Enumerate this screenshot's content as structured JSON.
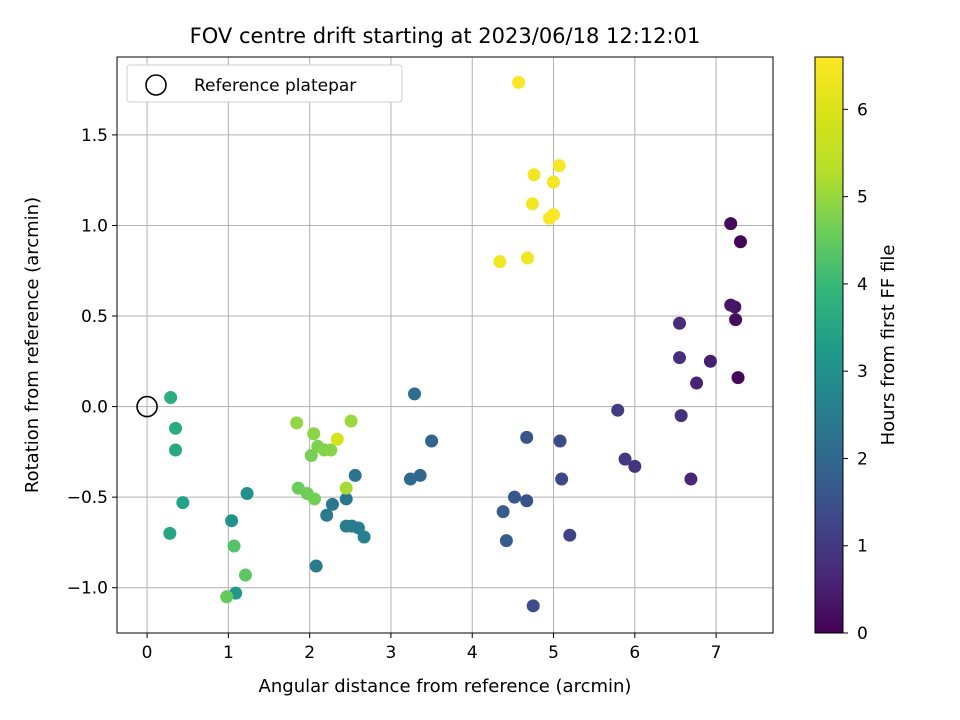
{
  "chart_data": {
    "type": "scatter",
    "title": "FOV centre drift starting at 2023/06/18 12:12:01",
    "xlabel": "Angular distance from reference (arcmin)",
    "ylabel": "Rotation from reference (arcmin)",
    "xlim": [
      -0.37,
      7.7
    ],
    "ylim": [
      -1.25,
      1.93
    ],
    "xticks": [
      0,
      1,
      2,
      3,
      4,
      5,
      6,
      7
    ],
    "xtick_labels": [
      "0",
      "1",
      "2",
      "3",
      "4",
      "5",
      "6",
      "7"
    ],
    "yticks": [
      -1.0,
      -0.5,
      0.0,
      0.5,
      1.0,
      1.5
    ],
    "ytick_labels": [
      "−1.0",
      "−0.5",
      "0.0",
      "0.5",
      "1.0",
      "1.5"
    ],
    "grid": true,
    "legend": {
      "position": "upper-left",
      "entries": [
        "Reference platepar"
      ]
    },
    "reference_point": {
      "x": 0,
      "y": 0,
      "label": "Reference platepar"
    },
    "colorbar": {
      "label": "Hours from first FF file",
      "colormap": "viridis",
      "range": [
        0,
        6.6
      ],
      "ticks": [
        0,
        1,
        2,
        3,
        4,
        5,
        6
      ],
      "tick_labels": [
        "0",
        "1",
        "2",
        "3",
        "4",
        "5",
        "6"
      ]
    },
    "points": [
      {
        "x": 7.3,
        "y": 0.91,
        "hours": 0.05
      },
      {
        "x": 7.18,
        "y": 1.01,
        "hours": 0.15
      },
      {
        "x": 7.27,
        "y": 0.16,
        "hours": 0.1
      },
      {
        "x": 7.24,
        "y": 0.48,
        "hours": 0.2
      },
      {
        "x": 7.23,
        "y": 0.55,
        "hours": 0.3
      },
      {
        "x": 7.18,
        "y": 0.56,
        "hours": 0.35
      },
      {
        "x": 6.93,
        "y": 0.25,
        "hours": 0.5
      },
      {
        "x": 6.76,
        "y": 0.13,
        "hours": 0.6
      },
      {
        "x": 6.69,
        "y": -0.4,
        "hours": 0.65
      },
      {
        "x": 6.55,
        "y": 0.46,
        "hours": 0.75
      },
      {
        "x": 6.55,
        "y": 0.27,
        "hours": 0.8
      },
      {
        "x": 6.57,
        "y": -0.05,
        "hours": 0.85
      },
      {
        "x": 6.0,
        "y": -0.33,
        "hours": 0.95
      },
      {
        "x": 5.88,
        "y": -0.29,
        "hours": 1.0
      },
      {
        "x": 5.79,
        "y": -0.02,
        "hours": 1.05
      },
      {
        "x": 5.2,
        "y": -0.71,
        "hours": 1.2
      },
      {
        "x": 5.1,
        "y": -0.4,
        "hours": 1.3
      },
      {
        "x": 5.08,
        "y": -0.19,
        "hours": 1.35
      },
      {
        "x": 4.75,
        "y": -1.1,
        "hours": 1.4
      },
      {
        "x": 4.67,
        "y": -0.52,
        "hours": 1.5
      },
      {
        "x": 4.67,
        "y": -0.17,
        "hours": 1.55
      },
      {
        "x": 4.52,
        "y": -0.5,
        "hours": 1.6
      },
      {
        "x": 4.42,
        "y": -0.74,
        "hours": 1.7
      },
      {
        "x": 4.38,
        "y": -0.58,
        "hours": 1.75
      },
      {
        "x": 3.5,
        "y": -0.19,
        "hours": 1.9
      },
      {
        "x": 3.36,
        "y": -0.38,
        "hours": 2.0
      },
      {
        "x": 3.24,
        "y": -0.4,
        "hours": 2.05
      },
      {
        "x": 3.29,
        "y": 0.07,
        "hours": 2.1
      },
      {
        "x": 2.56,
        "y": -0.38,
        "hours": 2.25
      },
      {
        "x": 2.45,
        "y": -0.51,
        "hours": 2.3
      },
      {
        "x": 2.28,
        "y": -0.54,
        "hours": 2.35
      },
      {
        "x": 2.21,
        "y": -0.6,
        "hours": 2.4
      },
      {
        "x": 2.45,
        "y": -0.66,
        "hours": 2.45
      },
      {
        "x": 2.52,
        "y": -0.66,
        "hours": 2.5
      },
      {
        "x": 2.6,
        "y": -0.67,
        "hours": 2.55
      },
      {
        "x": 2.67,
        "y": -0.72,
        "hours": 2.6
      },
      {
        "x": 2.08,
        "y": -0.88,
        "hours": 2.5
      },
      {
        "x": 1.23,
        "y": -0.48,
        "hours": 3.0
      },
      {
        "x": 1.04,
        "y": -0.63,
        "hours": 3.05
      },
      {
        "x": 1.09,
        "y": -1.03,
        "hours": 3.1
      },
      {
        "x": 0.44,
        "y": -0.53,
        "hours": 3.4
      },
      {
        "x": 0.28,
        "y": -0.7,
        "hours": 3.5
      },
      {
        "x": 0.35,
        "y": -0.24,
        "hours": 3.6
      },
      {
        "x": 0.35,
        "y": -0.12,
        "hours": 3.65
      },
      {
        "x": 0.29,
        "y": 0.05,
        "hours": 3.7
      },
      {
        "x": 1.07,
        "y": -0.77,
        "hours": 4.3
      },
      {
        "x": 1.21,
        "y": -0.93,
        "hours": 4.4
      },
      {
        "x": 0.98,
        "y": -1.05,
        "hours": 4.5
      },
      {
        "x": 1.86,
        "y": -0.45,
        "hours": 4.55
      },
      {
        "x": 1.97,
        "y": -0.48,
        "hours": 4.6
      },
      {
        "x": 2.06,
        "y": -0.51,
        "hours": 4.65
      },
      {
        "x": 2.02,
        "y": -0.27,
        "hours": 4.7
      },
      {
        "x": 2.1,
        "y": -0.22,
        "hours": 4.75
      },
      {
        "x": 2.18,
        "y": -0.24,
        "hours": 4.8
      },
      {
        "x": 2.26,
        "y": -0.24,
        "hours": 4.85
      },
      {
        "x": 2.05,
        "y": -0.15,
        "hours": 4.9
      },
      {
        "x": 1.84,
        "y": -0.09,
        "hours": 4.95
      },
      {
        "x": 2.51,
        "y": -0.08,
        "hours": 5.05
      },
      {
        "x": 2.45,
        "y": -0.45,
        "hours": 5.15
      },
      {
        "x": 2.34,
        "y": -0.18,
        "hours": 5.9
      },
      {
        "x": 4.34,
        "y": 0.8,
        "hours": 6.4
      },
      {
        "x": 4.68,
        "y": 0.82,
        "hours": 6.35
      },
      {
        "x": 4.74,
        "y": 1.12,
        "hours": 6.45
      },
      {
        "x": 4.76,
        "y": 1.28,
        "hours": 6.4
      },
      {
        "x": 4.95,
        "y": 1.04,
        "hours": 6.5
      },
      {
        "x": 5.0,
        "y": 1.06,
        "hours": 6.55
      },
      {
        "x": 5.0,
        "y": 1.24,
        "hours": 6.45
      },
      {
        "x": 5.07,
        "y": 1.33,
        "hours": 6.5
      },
      {
        "x": 4.57,
        "y": 1.79,
        "hours": 6.55
      }
    ]
  }
}
